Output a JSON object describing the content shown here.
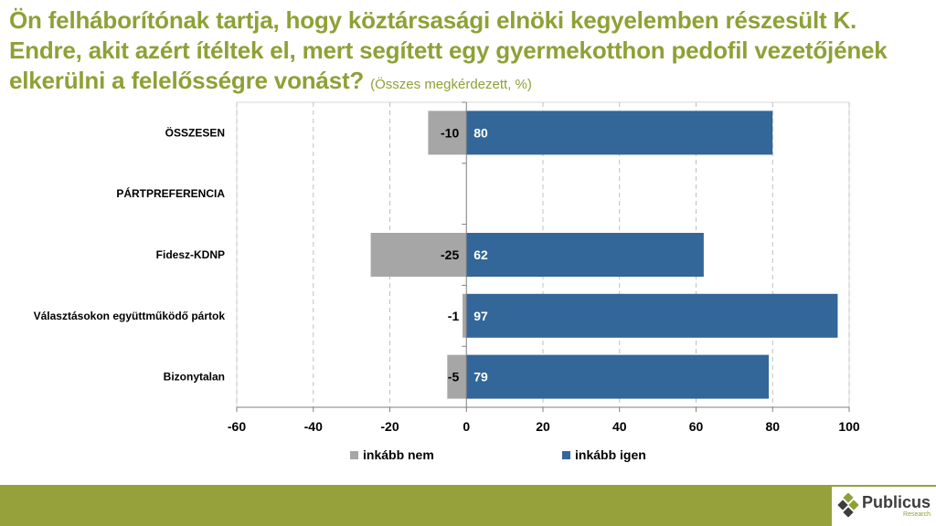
{
  "title": {
    "main": "Ön felháborítónak tartja, hogy köztársasági elnöki kegyelemben részesült K. Endre, akit azért ítéltek el, mert segített egy gyermekotthon pedofil vezetőjének elkerülni a felelősségre vonást?",
    "sub": "(Összes megkérdezett, %)"
  },
  "chart_data": {
    "type": "bar",
    "orientation": "horizontal",
    "stacked": "diverging",
    "categories": [
      "ÖSSZESEN",
      "PÁRTPREFERENCIA",
      "Fidesz-KDNP",
      "Választásokon együttműködő pártok",
      "Bizonytalan"
    ],
    "series": [
      {
        "name": "inkább nem",
        "values": [
          -10,
          null,
          -25,
          -1,
          -5
        ],
        "color": "#a6a6a6"
      },
      {
        "name": "inkább igen",
        "values": [
          80,
          null,
          62,
          97,
          79
        ],
        "color": "#336699"
      }
    ],
    "xlim": [
      -60,
      100
    ],
    "xticks": [
      -60,
      -40,
      -20,
      0,
      20,
      40,
      60,
      80,
      100
    ],
    "grid": "vertical-dashed",
    "legend": "bottom"
  },
  "logo": {
    "name": "Publicus",
    "tagline": "Research"
  },
  "colors": {
    "title": "#8ea136",
    "footer": "#96a13b",
    "nem": "#a6a6a6",
    "igen": "#336699"
  }
}
